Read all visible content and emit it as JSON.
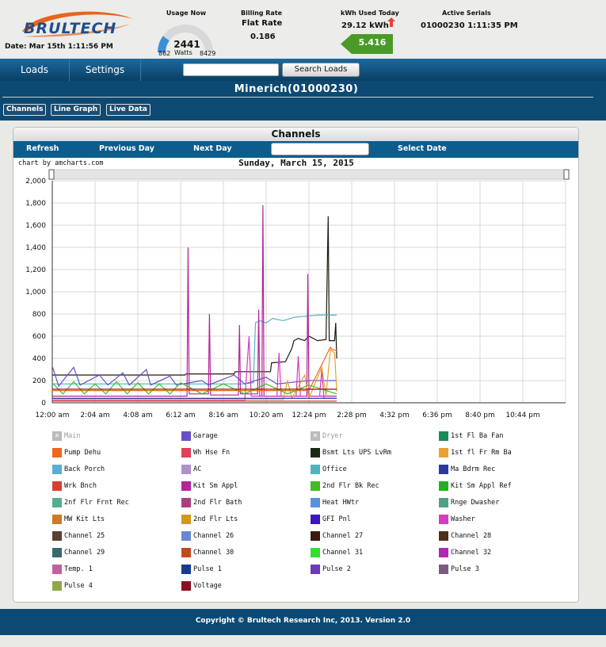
{
  "header": {
    "logo_text": "BRULTECH",
    "date": "Date: Mar 15th 1:11:56 PM",
    "usage_label": "Usage Now",
    "usage_value": "2441",
    "usage_unit": "Watts",
    "usage_min": "862",
    "usage_max": "8429",
    "usage_fraction": 0.2,
    "billing_label": "Billing Rate",
    "billing_type": "Flat Rate",
    "billing_value": "0.186",
    "kwh_label": "kWh Used Today",
    "kwh_value": "29.12 kWh",
    "kwh_box": "5.416",
    "serials_label": "Active Serials",
    "serials_value": "01000230 1:11:35 PM"
  },
  "nav": {
    "loads": "Loads",
    "settings": "Settings",
    "search_value": "",
    "search_button": "Search Loads"
  },
  "title": "Minerich(01000230)",
  "tabs": [
    "Channels",
    "Line Graph",
    "Live Data"
  ],
  "panel": {
    "title": "Channels",
    "refresh": "Refresh",
    "previous_day": "Previous Day",
    "next_day": "Next Day",
    "date_value": "",
    "select_date": "Select Date"
  },
  "chart_credit": "chart by amcharts.com",
  "chart_data": {
    "type": "line",
    "title": "Sunday, March 15, 2015",
    "x_ticks": [
      "12:00 am",
      "2:04 am",
      "4:08 am",
      "6:12 am",
      "8:16 am",
      "10:20 am",
      "12:24 pm",
      "2:28 pm",
      "4:32 pm",
      "6:36 pm",
      "8:40 pm",
      "10:44 pm"
    ],
    "y_ticks": [
      "0",
      "200",
      "400",
      "600",
      "800",
      "1,000",
      "1,200",
      "1,400",
      "1,600",
      "1,800",
      "2,000"
    ],
    "ylim": [
      0,
      2000
    ],
    "x_range_hours": [
      0,
      24
    ],
    "grid": true,
    "series": [
      {
        "name": "Bsmt Lts UPS LvRm",
        "color": "#1a1a10",
        "points": [
          [
            0,
            250
          ],
          [
            6.2,
            250
          ],
          [
            6.25,
            260
          ],
          [
            8.5,
            260
          ],
          [
            8.55,
            280
          ],
          [
            10.2,
            280
          ],
          [
            10.25,
            360
          ],
          [
            10.9,
            370
          ],
          [
            11.2,
            490
          ],
          [
            11.3,
            560
          ],
          [
            11.5,
            580
          ],
          [
            11.8,
            560
          ],
          [
            12.0,
            600
          ],
          [
            12.4,
            560
          ],
          [
            12.8,
            570
          ],
          [
            12.9,
            1680
          ],
          [
            12.95,
            560
          ],
          [
            13.2,
            560
          ],
          [
            13.25,
            720
          ],
          [
            13.3,
            400
          ]
        ]
      },
      {
        "name": "Office",
        "color": "#4fb3bf",
        "points": [
          [
            0,
            170
          ],
          [
            3,
            170
          ],
          [
            6,
            170
          ],
          [
            8.9,
            170
          ],
          [
            9.4,
            180
          ],
          [
            9.5,
            720
          ],
          [
            9.7,
            740
          ],
          [
            10.0,
            720
          ],
          [
            10.3,
            760
          ],
          [
            10.8,
            740
          ],
          [
            11.3,
            770
          ],
          [
            11.8,
            780
          ],
          [
            12.4,
            790
          ],
          [
            13.0,
            790
          ],
          [
            13.3,
            790
          ]
        ]
      },
      {
        "name": "Kit Sm Appl",
        "color": "#b5249a",
        "points": [
          [
            0,
            60
          ],
          [
            6.3,
            60
          ],
          [
            6.35,
            1400
          ],
          [
            6.4,
            80
          ],
          [
            7.3,
            80
          ],
          [
            7.35,
            800
          ],
          [
            7.4,
            70
          ],
          [
            8.7,
            70
          ],
          [
            8.75,
            700
          ],
          [
            8.8,
            80
          ],
          [
            9.6,
            80
          ],
          [
            9.65,
            840
          ],
          [
            9.7,
            60
          ],
          [
            9.8,
            60
          ],
          [
            9.85,
            1780
          ],
          [
            9.9,
            60
          ],
          [
            11.9,
            60
          ],
          [
            11.95,
            1160
          ],
          [
            12.0,
            60
          ],
          [
            13.3,
            60
          ]
        ]
      },
      {
        "name": "Garage",
        "color": "#6a4fc4",
        "points": [
          [
            0,
            330
          ],
          [
            0.3,
            150
          ],
          [
            1.0,
            320
          ],
          [
            1.3,
            160
          ],
          [
            2.2,
            250
          ],
          [
            2.6,
            160
          ],
          [
            3.3,
            270
          ],
          [
            3.6,
            160
          ],
          [
            4.4,
            300
          ],
          [
            4.6,
            160
          ],
          [
            5.5,
            240
          ],
          [
            5.8,
            160
          ],
          [
            7.0,
            200
          ],
          [
            7.3,
            160
          ],
          [
            8.5,
            250
          ],
          [
            9.0,
            170
          ],
          [
            10.0,
            230
          ],
          [
            10.5,
            170
          ],
          [
            12.0,
            200
          ],
          [
            13.3,
            200
          ]
        ]
      },
      {
        "name": "Washer",
        "color": "#d63cc0",
        "points": [
          [
            0,
            20
          ],
          [
            9.0,
            20
          ],
          [
            9.2,
            600
          ],
          [
            9.3,
            60
          ],
          [
            10.5,
            60
          ],
          [
            10.6,
            450
          ],
          [
            10.7,
            60
          ],
          [
            11.4,
            60
          ],
          [
            11.5,
            420
          ],
          [
            11.6,
            60
          ],
          [
            12.5,
            60
          ],
          [
            12.6,
            300
          ],
          [
            12.7,
            40
          ],
          [
            13.3,
            40
          ]
        ]
      },
      {
        "name": "1st fl Fr Rm Ba",
        "color": "#e8a030",
        "points": [
          [
            0,
            30
          ],
          [
            10.8,
            30
          ],
          [
            11.0,
            200
          ],
          [
            11.2,
            40
          ],
          [
            11.8,
            250
          ],
          [
            12.0,
            40
          ],
          [
            12.6,
            320
          ],
          [
            12.8,
            60
          ],
          [
            13.0,
            480
          ],
          [
            13.2,
            450
          ],
          [
            13.3,
            100
          ]
        ]
      },
      {
        "name": "Pump Dehu",
        "color": "#f0661c",
        "points": [
          [
            0,
            110
          ],
          [
            2,
            110
          ],
          [
            4,
            110
          ],
          [
            6,
            110
          ],
          [
            8,
            110
          ],
          [
            10,
            110
          ],
          [
            12,
            110
          ],
          [
            13.0,
            500
          ],
          [
            13.1,
            480
          ],
          [
            13.3,
            470
          ]
        ]
      },
      {
        "name": "2nd Flr Bk Rec",
        "color": "#44bb22",
        "points": [
          [
            0,
            180
          ],
          [
            0.5,
            80
          ],
          [
            1.0,
            190
          ],
          [
            1.5,
            80
          ],
          [
            2.0,
            170
          ],
          [
            2.5,
            80
          ],
          [
            3.0,
            190
          ],
          [
            3.5,
            80
          ],
          [
            4.0,
            180
          ],
          [
            4.5,
            80
          ],
          [
            5.0,
            170
          ],
          [
            5.5,
            80
          ],
          [
            6.0,
            180
          ],
          [
            7.0,
            80
          ],
          [
            8.0,
            170
          ],
          [
            9.0,
            80
          ],
          [
            10.0,
            170
          ],
          [
            11.0,
            80
          ],
          [
            12.0,
            160
          ],
          [
            13.3,
            80
          ]
        ]
      },
      {
        "name": "Ma Bdrm Rec",
        "color": "#2a3aa0",
        "points": [
          [
            0,
            40
          ],
          [
            13.3,
            40
          ]
        ]
      },
      {
        "name": "Voltage",
        "color": "#8a1020",
        "points": [
          [
            0,
            122
          ],
          [
            13.3,
            122
          ]
        ]
      },
      {
        "name": "Wrk Bnch",
        "color": "#d84030",
        "points": [
          [
            0,
            15
          ],
          [
            13.3,
            15
          ]
        ]
      }
    ]
  },
  "legend": [
    {
      "label": "Main",
      "color": "#bbbbbb",
      "hidden": true
    },
    {
      "label": "Garage",
      "color": "#6a4fc4"
    },
    {
      "label": "Dryer",
      "color": "#bbbbbb",
      "hidden": true
    },
    {
      "label": "1st Fl Ba Fan",
      "color": "#1a8a5a"
    },
    {
      "label": "Pump Dehu",
      "color": "#f0661c"
    },
    {
      "label": "Wh Hse Fn",
      "color": "#e0405a"
    },
    {
      "label": "Bsmt Lts UPS LvRm",
      "color": "#1a2a12"
    },
    {
      "label": "1st fl Fr Rm Ba",
      "color": "#e8a030"
    },
    {
      "label": "Back Porch",
      "color": "#5aaed0"
    },
    {
      "label": "AC",
      "color": "#b090c8"
    },
    {
      "label": "Office",
      "color": "#4fb3bf"
    },
    {
      "label": "Ma Bdrm Rec",
      "color": "#2a3aa0"
    },
    {
      "label": "Wrk Bnch",
      "color": "#d84030"
    },
    {
      "label": "Kit Sm Appl",
      "color": "#b5249a"
    },
    {
      "label": "2nd Flr Bk Rec",
      "color": "#44bb22"
    },
    {
      "label": "Kit Sm Appl Ref",
      "color": "#22b022"
    },
    {
      "label": "2nf Flr Frnt Rec",
      "color": "#50b090"
    },
    {
      "label": "2nd Flr Bath",
      "color": "#a84080"
    },
    {
      "label": "Heat HWtr",
      "color": "#5a90e0"
    },
    {
      "label": "Rnge Dwasher",
      "color": "#50a088"
    },
    {
      "label": "MW Kit Lts",
      "color": "#d07828"
    },
    {
      "label": "2nd Flr Lts",
      "color": "#d09a18"
    },
    {
      "label": "GFI Pnl",
      "color": "#3a18c0"
    },
    {
      "label": "Washer",
      "color": "#d63cc0"
    },
    {
      "label": "Channel 25",
      "color": "#5a4030"
    },
    {
      "label": "Channel 26",
      "color": "#6a88d0"
    },
    {
      "label": "Channel 27",
      "color": "#3a1a10"
    },
    {
      "label": "Channel 28",
      "color": "#503018"
    },
    {
      "label": "Channel 29",
      "color": "#3a6870"
    },
    {
      "label": "Channel 30",
      "color": "#c04a20"
    },
    {
      "label": "Channel 31",
      "color": "#30e030"
    },
    {
      "label": "Channel 32",
      "color": "#b028b0"
    },
    {
      "label": "Temp. 1",
      "color": "#c060a0"
    },
    {
      "label": "Pulse 1",
      "color": "#1a3a90"
    },
    {
      "label": "Pulse 2",
      "color": "#6a3ab8"
    },
    {
      "label": "Pulse 3",
      "color": "#7a5a80"
    },
    {
      "label": "Pulse 4",
      "color": "#90a848"
    },
    {
      "label": "Voltage",
      "color": "#8a1020"
    }
  ],
  "footer": "Copyright © Brultech Research Inc, 2013. Version 2.0"
}
